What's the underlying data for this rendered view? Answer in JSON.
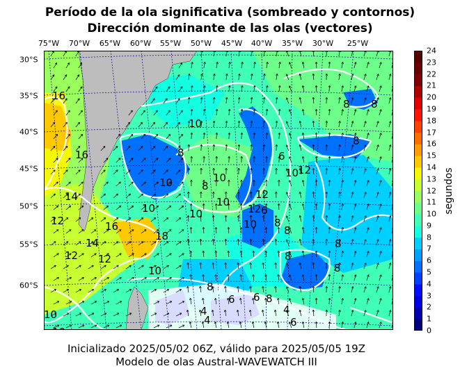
{
  "title_line1": "Período de la ola significativa (sombreado y contornos)",
  "title_line2": "Dirección dominante de las olas (vectores)",
  "footer_line1": "Inicializado 2025/05/02 06Z, válido para 2025/05/05 19Z",
  "footer_line2": "Modelo de olas Austral-WAVEWATCH III",
  "lon_labels": [
    "75°W",
    "70°W",
    "65°W",
    "60°W",
    "55°W",
    "50°W",
    "45°W",
    "40°W",
    "35°W",
    "30°W",
    "25°W"
  ],
  "lat_labels": [
    "30°S",
    "35°S",
    "40°S",
    "45°S",
    "50°S",
    "55°S",
    "60°S"
  ],
  "colorbar": {
    "title": "segundos",
    "ticks": [
      "0",
      "1",
      "2",
      "3",
      "4",
      "5",
      "6",
      "7",
      "8",
      "9",
      "10",
      "11",
      "12",
      "13",
      "14",
      "15",
      "16",
      "17",
      "18",
      "19",
      "20",
      "21",
      "22",
      "23",
      "24"
    ],
    "colors": [
      "#00007f",
      "#0000b2",
      "#0000e5",
      "#0010ff",
      "#0040ff",
      "#0070ff",
      "#00a0ff",
      "#00d0ff",
      "#14ffe2",
      "#40ffb7",
      "#6dff8a",
      "#9aff5d",
      "#c7ff30",
      "#f4f802",
      "#ffc900",
      "#ff9c00",
      "#ff6f00",
      "#ff4100",
      "#ff1400",
      "#e50000",
      "#b20000",
      "#7f0000",
      "#6a0000",
      "#560000"
    ]
  },
  "colors": {
    "land": "#bdbdbd",
    "contour": "#ffffff",
    "graticule": "#1a1a8c"
  },
  "contour_labels": [
    "16",
    "16",
    "14",
    "12",
    "16",
    "14",
    "12",
    "12",
    "10",
    "8",
    "10",
    "10",
    "8",
    "10",
    "12",
    "10",
    "12",
    "6",
    "10",
    "8",
    "12",
    "10",
    "6",
    "8",
    "18",
    "8",
    "10",
    "4",
    "4",
    "8",
    "6",
    "6",
    "8",
    "4",
    "6",
    "10",
    "10",
    "8",
    "8",
    "8",
    "8",
    "8",
    "10"
  ]
}
